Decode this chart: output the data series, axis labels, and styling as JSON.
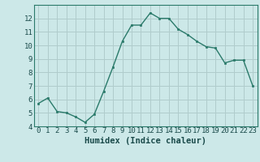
{
  "x": [
    0,
    1,
    2,
    3,
    4,
    5,
    6,
    7,
    8,
    9,
    10,
    11,
    12,
    13,
    14,
    15,
    16,
    17,
    18,
    19,
    20,
    21,
    22,
    23
  ],
  "y": [
    5.7,
    6.1,
    5.1,
    5.0,
    4.7,
    4.3,
    4.9,
    6.6,
    8.4,
    10.3,
    11.5,
    11.5,
    12.4,
    12.0,
    12.0,
    11.2,
    10.8,
    10.3,
    9.9,
    9.8,
    8.7,
    8.9,
    8.9,
    7.0
  ],
  "xlabel": "Humidex (Indice chaleur)",
  "ylim": [
    4,
    13
  ],
  "xlim": [
    -0.5,
    23.5
  ],
  "yticks": [
    4,
    5,
    6,
    7,
    8,
    9,
    10,
    11,
    12
  ],
  "xticks": [
    0,
    1,
    2,
    3,
    4,
    5,
    6,
    7,
    8,
    9,
    10,
    11,
    12,
    13,
    14,
    15,
    16,
    17,
    18,
    19,
    20,
    21,
    22,
    23
  ],
  "line_color": "#2a7a6a",
  "marker_color": "#2a7a6a",
  "bg_color": "#cce8e8",
  "grid_color": "#b0cccc",
  "tick_label_fontsize": 6.5,
  "xlabel_fontsize": 7.5
}
